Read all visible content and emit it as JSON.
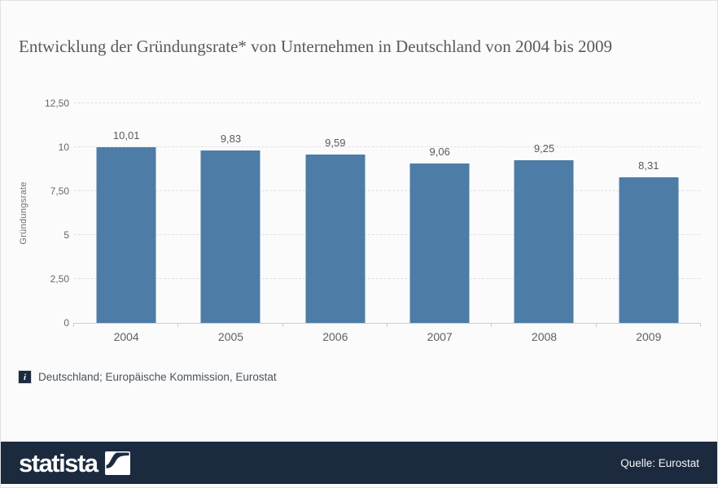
{
  "title": "Entwicklung der Gründungsrate* von Unternehmen in Deutschland von 2004 bis 2009",
  "chart_data": {
    "type": "bar",
    "categories": [
      "2004",
      "2005",
      "2006",
      "2007",
      "2008",
      "2009"
    ],
    "values": [
      10.01,
      9.83,
      9.59,
      9.06,
      9.25,
      8.31
    ],
    "value_labels": [
      "10,01",
      "9,83",
      "9,59",
      "9,06",
      "9,25",
      "8,31"
    ],
    "title": "Entwicklung der Gründungsrate* von Unternehmen in Deutschland von 2004 bis 2009",
    "xlabel": "",
    "ylabel": "Gründungsrate",
    "ylim": [
      0,
      12.5
    ],
    "yticks": [
      {
        "v": 12.5,
        "label": "12,50"
      },
      {
        "v": 10,
        "label": "10"
      },
      {
        "v": 7.5,
        "label": "7,50"
      },
      {
        "v": 5,
        "label": "5"
      },
      {
        "v": 2.5,
        "label": "2,50"
      },
      {
        "v": 0,
        "label": "0"
      }
    ],
    "grid": "horizontal-dashed",
    "legend": "none",
    "bar_color": "#4d7da6"
  },
  "footnote": {
    "icon": "info-icon",
    "icon_glyph": "i",
    "text": "Deutschland; Europäische Kommission, Eurostat"
  },
  "footer": {
    "brand": "statista",
    "logo": "statista-swoosh-icon",
    "source": "Quelle: Eurostat",
    "background_color": "#1b2a3f"
  },
  "colors": {
    "page_background": "#fbfbfb",
    "bar": "#4d7da6",
    "footer_background": "#1b2a3f",
    "axis": "#c3ced8"
  }
}
